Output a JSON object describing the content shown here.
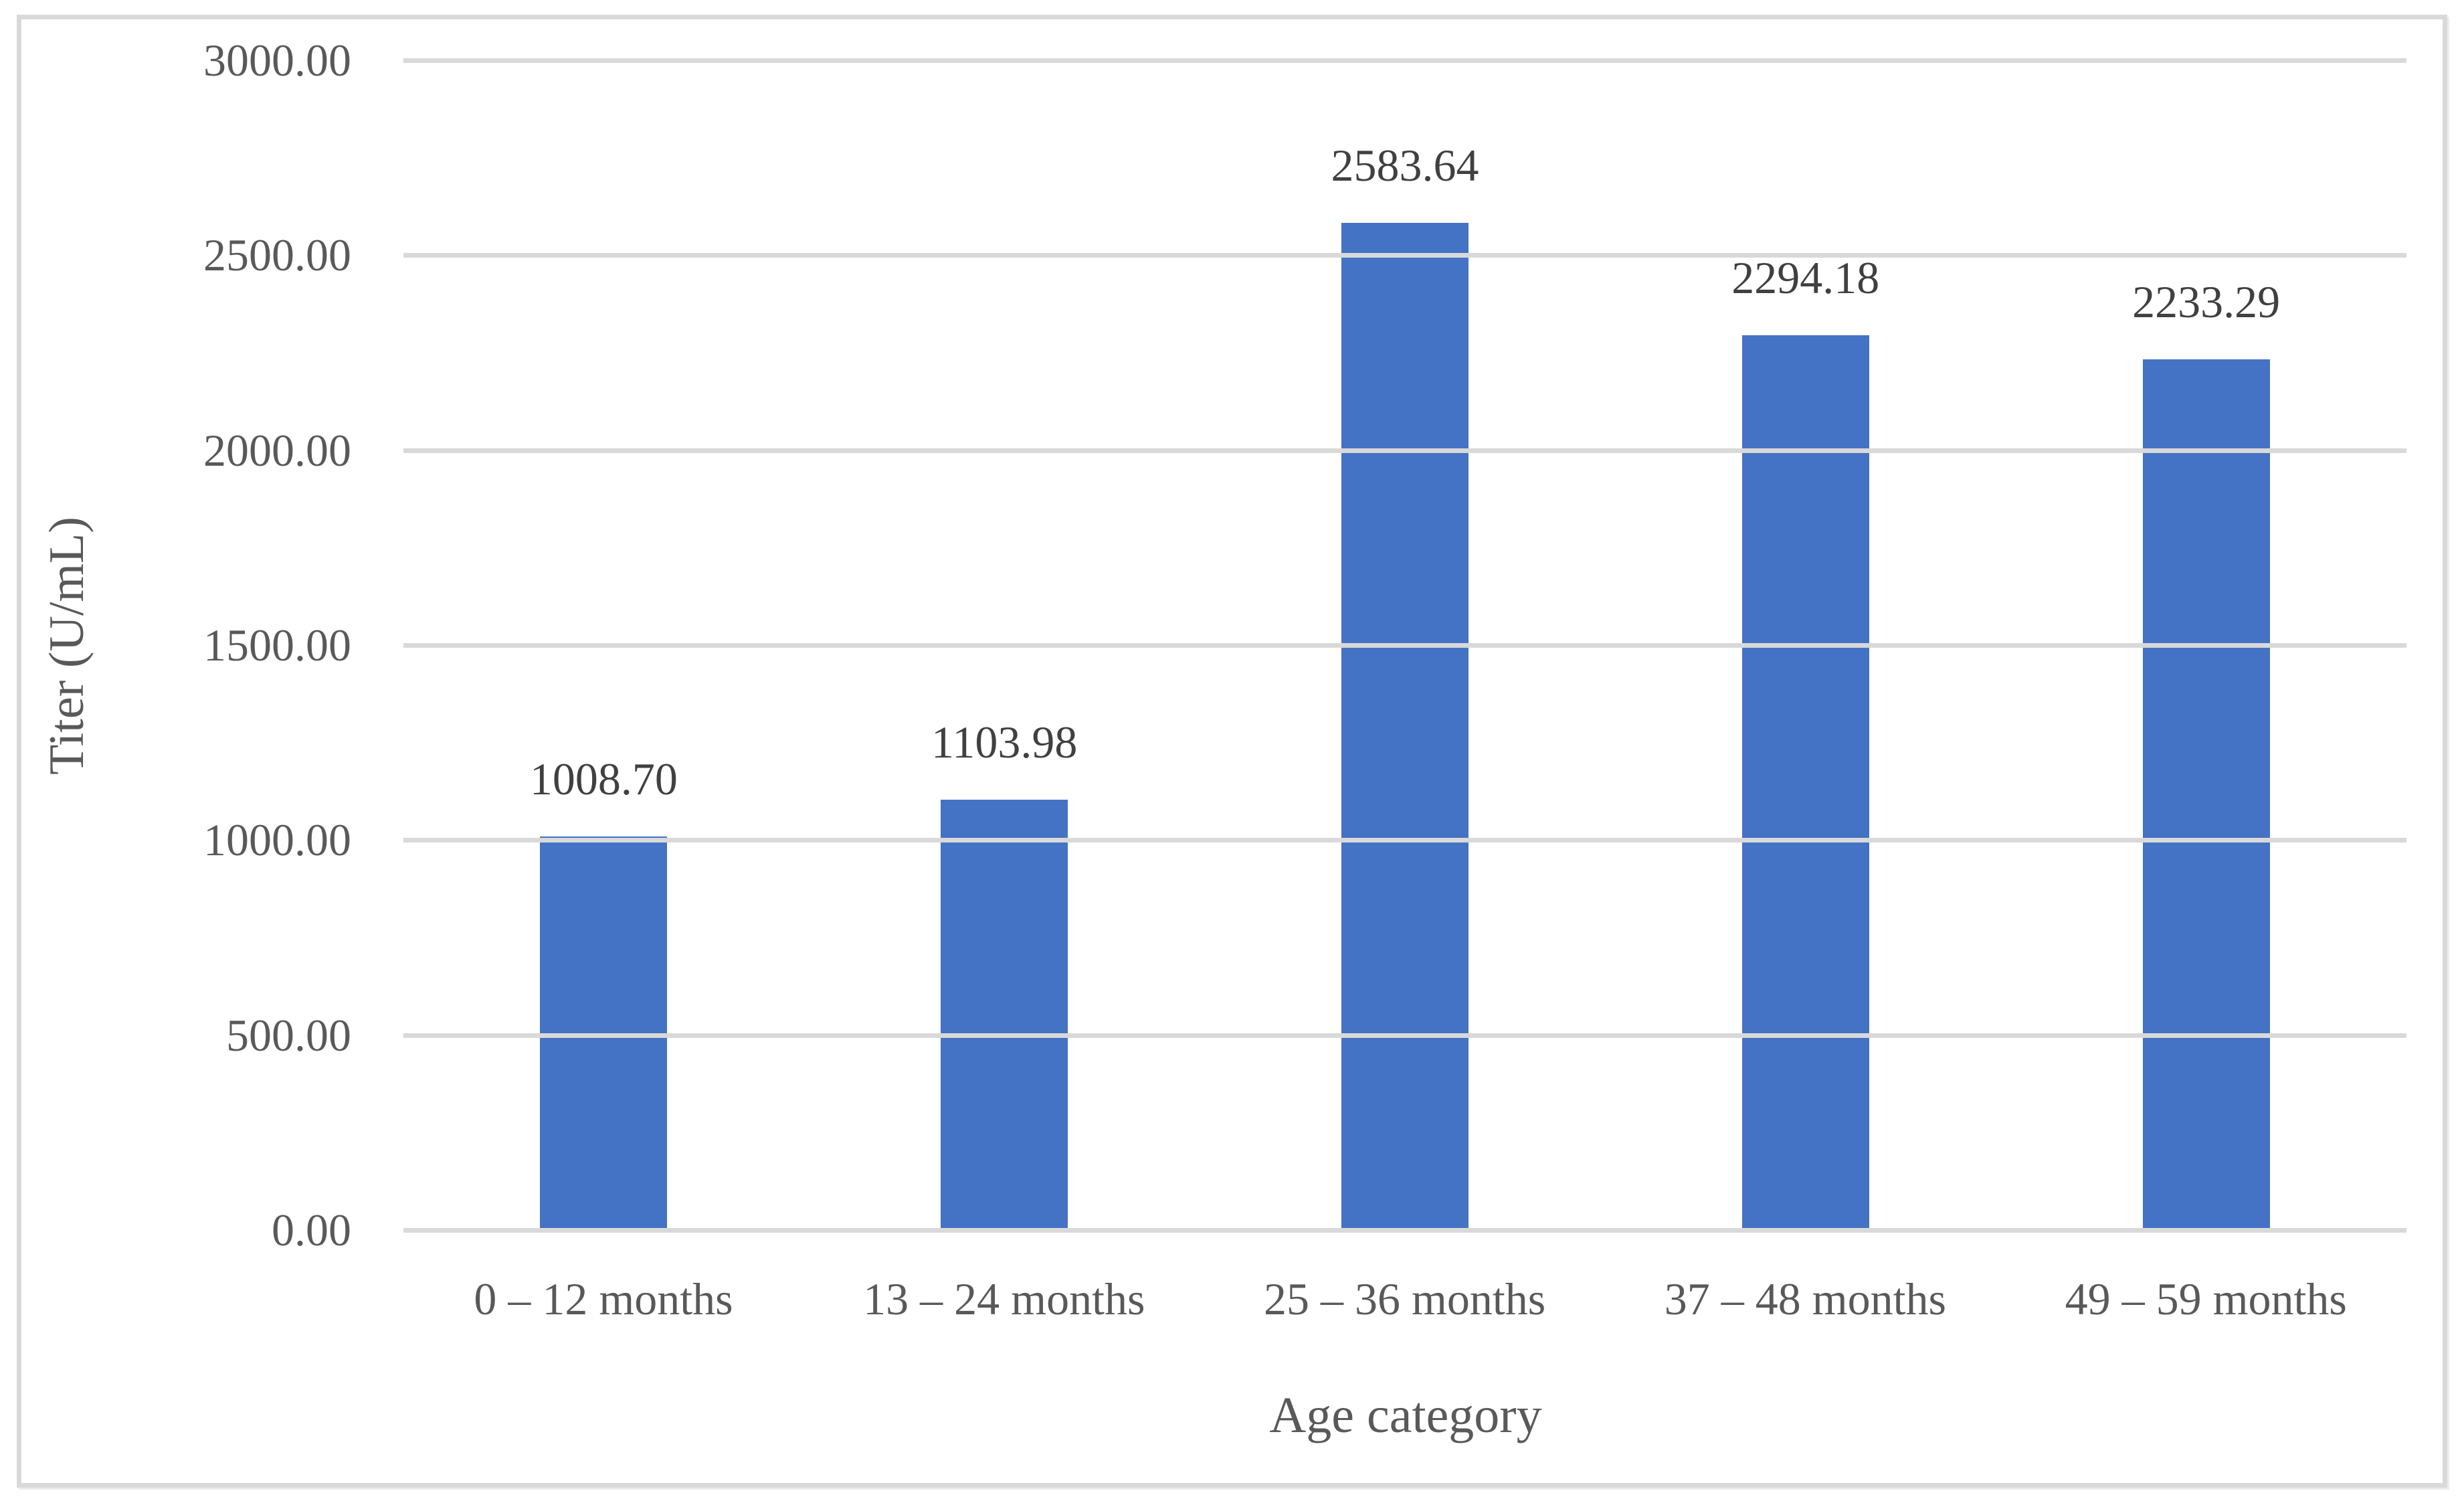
{
  "chart_data": {
    "type": "bar",
    "title": "",
    "xlabel": "Age category",
    "ylabel": "Titer (U/mL)",
    "categories": [
      "0 – 12 months",
      "13 – 24 months",
      "25 – 36 months",
      "37 – 48 months",
      "49 – 59 months"
    ],
    "values": [
      1008.7,
      1103.98,
      2583.64,
      2294.18,
      2233.29
    ],
    "data_labels": [
      "1008.70",
      "1103.98",
      "2583.64",
      "2294.18",
      "2233.29"
    ],
    "ylim": [
      0,
      3000
    ],
    "ytick_step": 500,
    "ytick_labels": [
      "0.00",
      "500.00",
      "1000.00",
      "1500.00",
      "2000.00",
      "2500.00",
      "3000.00"
    ],
    "grid": true,
    "legend_position": "none",
    "colors": {
      "bar": "#4472C4",
      "gridline": "#D9D9D9",
      "axis_line": "#D9D9D9",
      "tick_text": "#595959",
      "data_label_text": "#404040",
      "axis_title_text": "#595959",
      "frame_border": "#D9D9D9"
    }
  }
}
